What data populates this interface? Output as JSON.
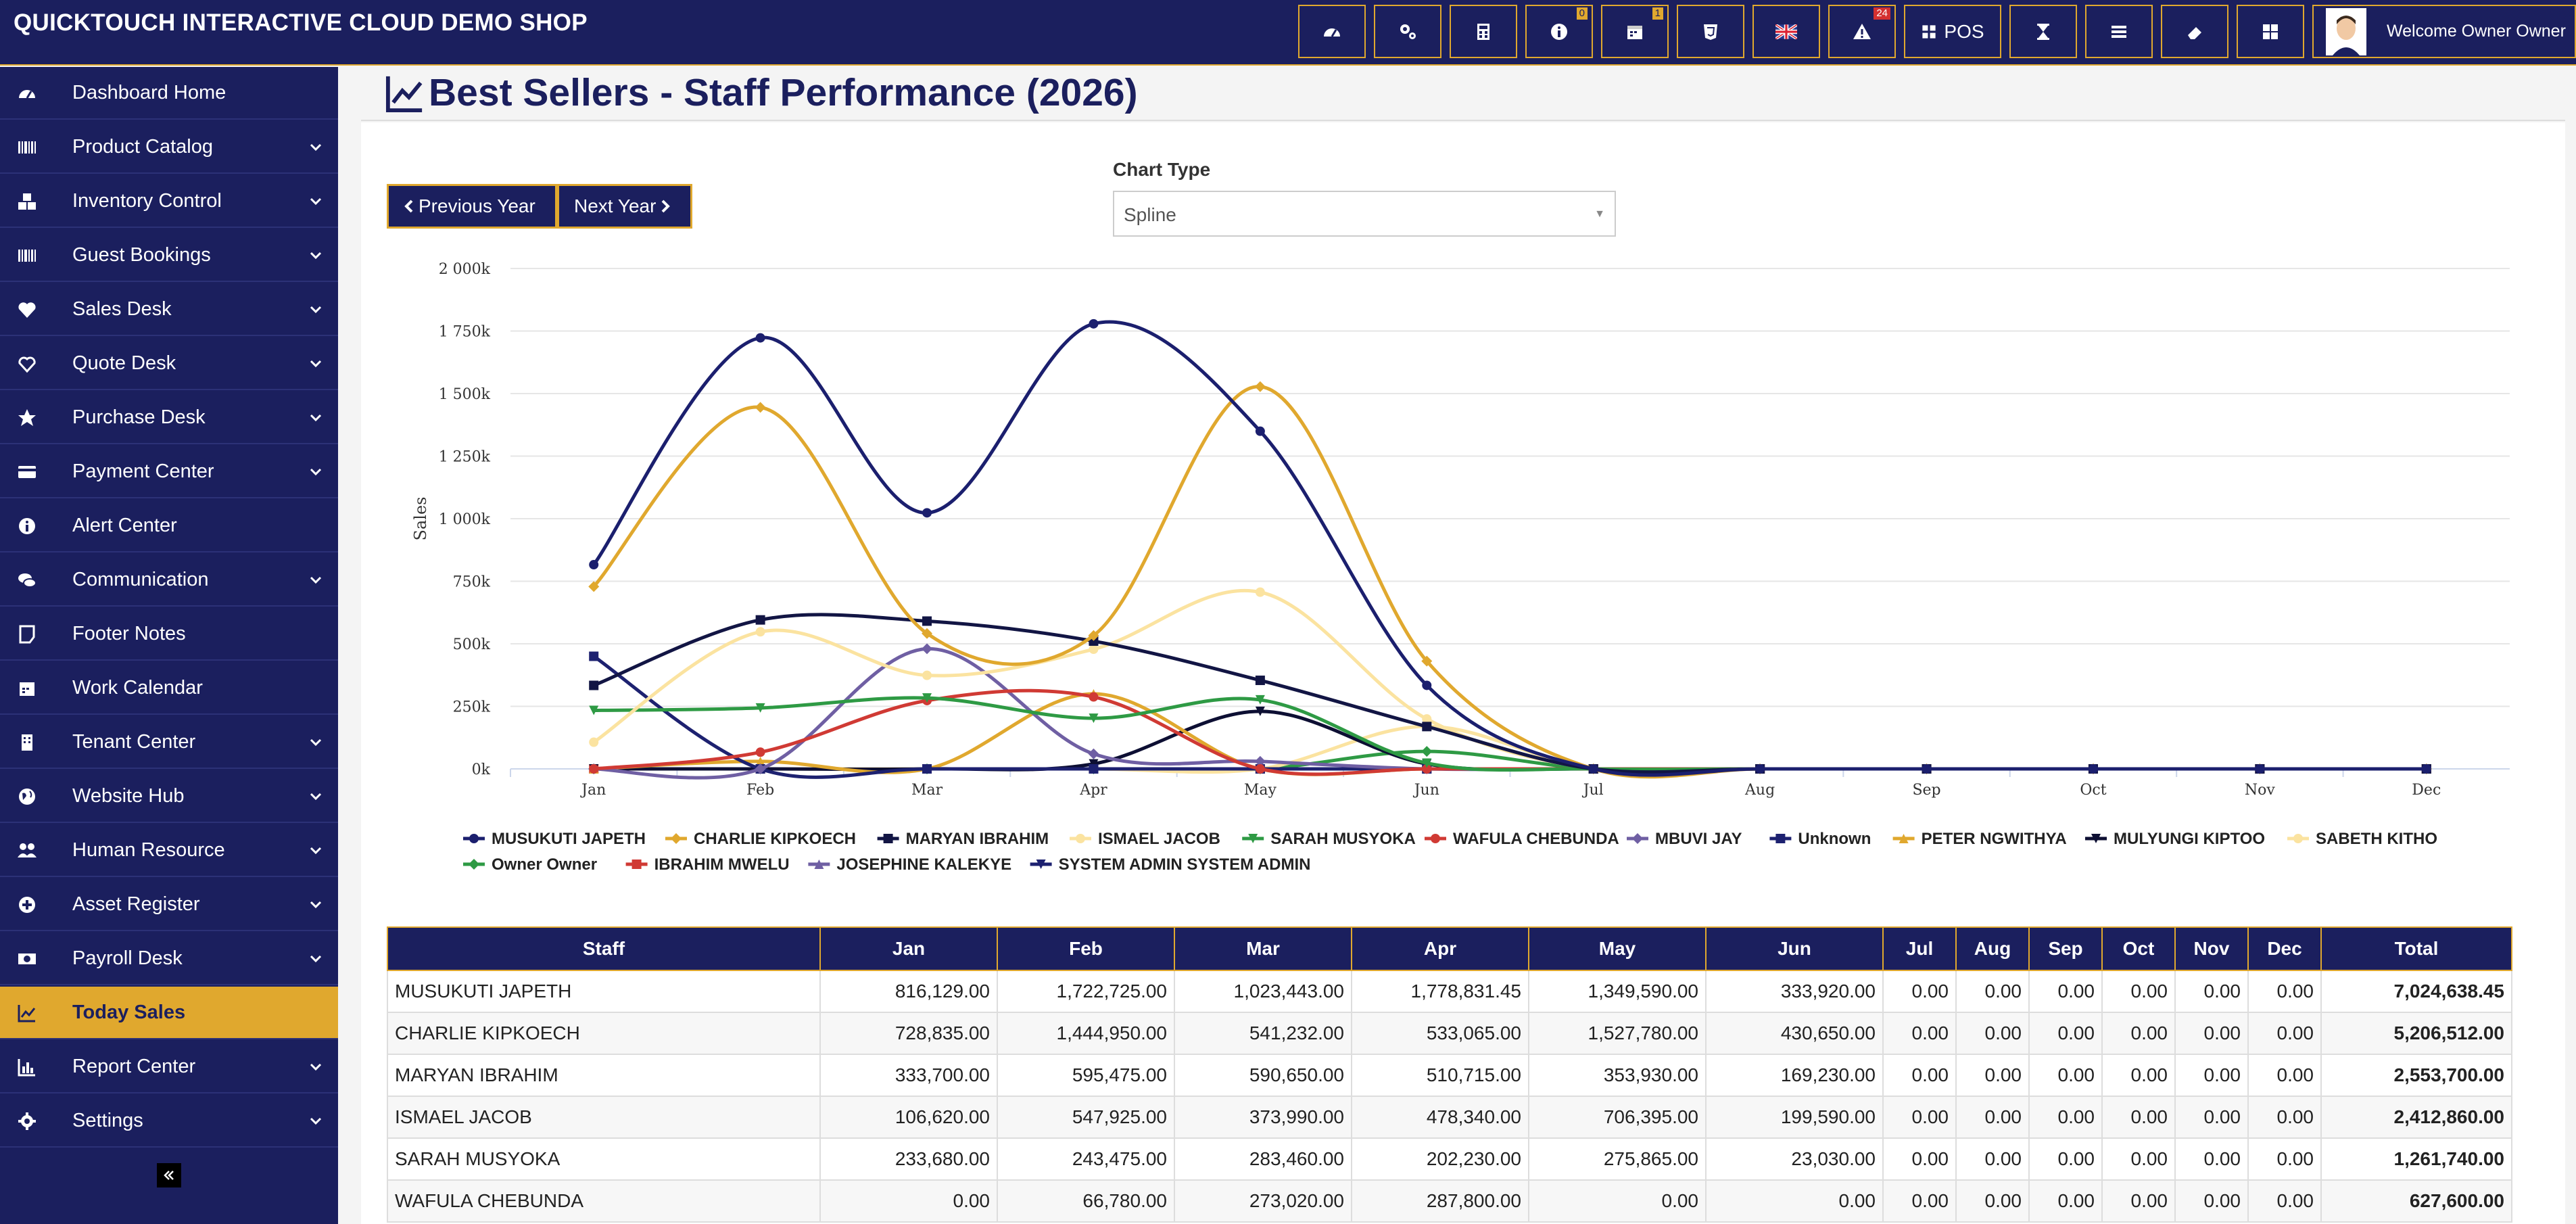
{
  "app": {
    "title": "QUICKTOUCH INTERACTIVE CLOUD DEMO SHOP",
    "pos_label": "POS",
    "welcome": "Welcome Owner Owner",
    "badges": {
      "info": "0",
      "calendar": "1",
      "alert": "24"
    }
  },
  "sidebar": {
    "items": [
      {
        "label": "Dashboard Home",
        "icon": "dashboard-icon",
        "chevron": false
      },
      {
        "label": "Product Catalog",
        "icon": "barcode-icon",
        "chevron": true
      },
      {
        "label": "Inventory Control",
        "icon": "cubes-icon",
        "chevron": true
      },
      {
        "label": "Guest Bookings",
        "icon": "barcode-icon",
        "chevron": true
      },
      {
        "label": "Sales Desk",
        "icon": "heart-icon",
        "chevron": true
      },
      {
        "label": "Quote Desk",
        "icon": "heart-outline-icon",
        "chevron": true
      },
      {
        "label": "Purchase Desk",
        "icon": "star-icon",
        "chevron": true
      },
      {
        "label": "Payment Center",
        "icon": "credit-card-icon",
        "chevron": true
      },
      {
        "label": "Alert Center",
        "icon": "info-icon",
        "chevron": false
      },
      {
        "label": "Communication",
        "icon": "comments-icon",
        "chevron": true
      },
      {
        "label": "Footer Notes",
        "icon": "note-icon",
        "chevron": false
      },
      {
        "label": "Work Calendar",
        "icon": "calendar-icon",
        "chevron": false
      },
      {
        "label": "Tenant Center",
        "icon": "building-icon",
        "chevron": true
      },
      {
        "label": "Website Hub",
        "icon": "globe-icon",
        "chevron": true
      },
      {
        "label": "Human Resource",
        "icon": "users-icon",
        "chevron": true
      },
      {
        "label": "Asset Register",
        "icon": "plus-circle-icon",
        "chevron": true
      },
      {
        "label": "Payroll Desk",
        "icon": "money-icon",
        "chevron": true
      },
      {
        "label": "Today Sales",
        "icon": "line-chart-icon",
        "chevron": false,
        "active": true
      },
      {
        "label": "Report Center",
        "icon": "bar-chart-icon",
        "chevron": true
      },
      {
        "label": "Settings",
        "icon": "cog-icon",
        "chevron": true
      }
    ]
  },
  "page": {
    "title": "Best Sellers - Staff Performance (2026)",
    "prev_year": "Previous Year",
    "next_year": "Next Year",
    "chart_type_label": "Chart Type",
    "chart_type_value": "Spline"
  },
  "chart_data": {
    "type": "line",
    "ylabel": "Sales",
    "ylim": [
      0,
      2000000
    ],
    "yticks": [
      "0k",
      "250k",
      "500k",
      "750k",
      "1 000k",
      "1 250k",
      "1 500k",
      "1 750k",
      "2 000k"
    ],
    "categories": [
      "Jan",
      "Feb",
      "Mar",
      "Apr",
      "May",
      "Jun",
      "Jul",
      "Aug",
      "Sep",
      "Oct",
      "Nov",
      "Dec"
    ],
    "legend_position": "bottom",
    "series": [
      {
        "name": "MUSUKUTI JAPETH",
        "color": "#1b1f6e",
        "marker": "circle",
        "values": [
          816129,
          1722725,
          1023443,
          1778831.45,
          1349590,
          333920,
          0,
          0,
          0,
          0,
          0,
          0
        ]
      },
      {
        "name": "CHARLIE KIPKOECH",
        "color": "#e0a82e",
        "marker": "diamond",
        "values": [
          728835,
          1444950,
          541232,
          533065,
          1527780,
          430650,
          0,
          0,
          0,
          0,
          0,
          0
        ]
      },
      {
        "name": "MARYAN IBRAHIM",
        "color": "#121544",
        "marker": "square",
        "values": [
          333700,
          595475,
          590650,
          510715,
          353930,
          169230,
          0,
          0,
          0,
          0,
          0,
          0
        ]
      },
      {
        "name": "ISMAEL JACOB",
        "color": "#fbe3a0",
        "marker": "circle",
        "values": [
          106620,
          547925,
          373990,
          478340,
          706395,
          199590,
          0,
          0,
          0,
          0,
          0,
          0
        ]
      },
      {
        "name": "SARAH MUSYOKA",
        "color": "#2e9a44",
        "marker": "triangle-down",
        "values": [
          233680,
          243475,
          283460,
          202230,
          275865,
          23030,
          0,
          0,
          0,
          0,
          0,
          0
        ]
      },
      {
        "name": "WAFULA CHEBUNDA",
        "color": "#d03a34",
        "marker": "circle",
        "values": [
          0,
          66780,
          273020,
          287800,
          0,
          0,
          0,
          0,
          0,
          0,
          0,
          0
        ]
      },
      {
        "name": "MBUVI JAY",
        "color": "#6f5fa3",
        "marker": "diamond",
        "values": [
          0,
          0,
          480000,
          60000,
          30000,
          0,
          0,
          0,
          0,
          0,
          0,
          0
        ]
      },
      {
        "name": "Unknown",
        "color": "#1d2170",
        "marker": "square",
        "values": [
          450000,
          0,
          0,
          0,
          0,
          0,
          0,
          0,
          0,
          0,
          0,
          0
        ]
      },
      {
        "name": "PETER NGWITHYA",
        "color": "#e0a82e",
        "marker": "triangle",
        "values": [
          0,
          30000,
          0,
          300000,
          0,
          0,
          0,
          0,
          0,
          0,
          0,
          0
        ]
      },
      {
        "name": "MULYUNGI KIPTOO",
        "color": "#0d0f33",
        "marker": "triangle-down",
        "values": [
          0,
          0,
          0,
          20000,
          230000,
          20000,
          0,
          0,
          0,
          0,
          0,
          0
        ]
      },
      {
        "name": "SABETH KITHO",
        "color": "#fbe3a0",
        "marker": "circle",
        "values": [
          0,
          0,
          0,
          0,
          0,
          170000,
          0,
          0,
          0,
          0,
          0,
          0
        ]
      },
      {
        "name": "Owner Owner",
        "color": "#2e9a44",
        "marker": "diamond",
        "values": [
          0,
          0,
          0,
          0,
          0,
          70000,
          0,
          0,
          0,
          0,
          0,
          0
        ]
      },
      {
        "name": "IBRAHIM MWELU",
        "color": "#d03a34",
        "marker": "square",
        "values": [
          0,
          0,
          0,
          0,
          0,
          0,
          0,
          0,
          0,
          0,
          0,
          0
        ]
      },
      {
        "name": "JOSEPHINE KALEKYE",
        "color": "#6f5fa3",
        "marker": "triangle",
        "values": [
          0,
          0,
          0,
          0,
          0,
          0,
          0,
          0,
          0,
          0,
          0,
          0
        ]
      },
      {
        "name": "SYSTEM ADMIN SYSTEM ADMIN",
        "color": "#1d2170",
        "marker": "triangle-down",
        "values": [
          0,
          0,
          0,
          0,
          0,
          0,
          0,
          0,
          0,
          0,
          0,
          0
        ]
      }
    ]
  },
  "table": {
    "headers": [
      "Staff",
      "Jan",
      "Feb",
      "Mar",
      "Apr",
      "May",
      "Jun",
      "Jul",
      "Aug",
      "Sep",
      "Oct",
      "Nov",
      "Dec",
      "Total"
    ],
    "rows": [
      [
        "MUSUKUTI JAPETH",
        "816,129.00",
        "1,722,725.00",
        "1,023,443.00",
        "1,778,831.45",
        "1,349,590.00",
        "333,920.00",
        "0.00",
        "0.00",
        "0.00",
        "0.00",
        "0.00",
        "0.00",
        "7,024,638.45"
      ],
      [
        "CHARLIE KIPKOECH",
        "728,835.00",
        "1,444,950.00",
        "541,232.00",
        "533,065.00",
        "1,527,780.00",
        "430,650.00",
        "0.00",
        "0.00",
        "0.00",
        "0.00",
        "0.00",
        "0.00",
        "5,206,512.00"
      ],
      [
        "MARYAN IBRAHIM",
        "333,700.00",
        "595,475.00",
        "590,650.00",
        "510,715.00",
        "353,930.00",
        "169,230.00",
        "0.00",
        "0.00",
        "0.00",
        "0.00",
        "0.00",
        "0.00",
        "2,553,700.00"
      ],
      [
        "ISMAEL JACOB",
        "106,620.00",
        "547,925.00",
        "373,990.00",
        "478,340.00",
        "706,395.00",
        "199,590.00",
        "0.00",
        "0.00",
        "0.00",
        "0.00",
        "0.00",
        "0.00",
        "2,412,860.00"
      ],
      [
        "SARAH MUSYOKA",
        "233,680.00",
        "243,475.00",
        "283,460.00",
        "202,230.00",
        "275,865.00",
        "23,030.00",
        "0.00",
        "0.00",
        "0.00",
        "0.00",
        "0.00",
        "0.00",
        "1,261,740.00"
      ],
      [
        "WAFULA CHEBUNDA",
        "0.00",
        "66,780.00",
        "273,020.00",
        "287,800.00",
        "0.00",
        "0.00",
        "0.00",
        "0.00",
        "0.00",
        "0.00",
        "0.00",
        "0.00",
        "627,600.00"
      ]
    ]
  }
}
